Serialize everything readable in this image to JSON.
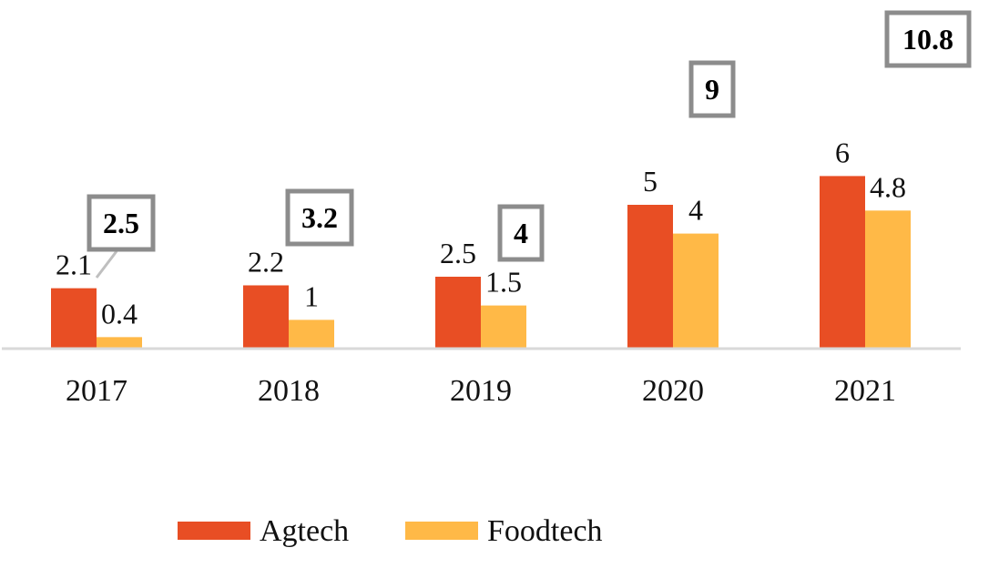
{
  "chart_data": {
    "type": "bar",
    "categories": [
      "2017",
      "2018",
      "2019",
      "2020",
      "2021"
    ],
    "series": [
      {
        "name": "Agtech",
        "values": [
          2.1,
          2.2,
          2.5,
          5,
          6
        ],
        "labels": [
          "2.1",
          "2.2",
          "2.5",
          "5",
          "6"
        ],
        "color": "#e84e24"
      },
      {
        "name": "Foodtech",
        "values": [
          0.4,
          1,
          1.5,
          4,
          4.8
        ],
        "labels": [
          "0.4",
          "1",
          "1.5",
          "4",
          "4.8"
        ],
        "color": "#ffb947"
      }
    ],
    "totals": [
      "2.5",
      "3.2",
      "4",
      "9",
      "10.8"
    ],
    "title": "",
    "xlabel": "",
    "ylabel": "",
    "ylim": [
      0,
      12
    ],
    "grid": false,
    "legend": "bottom-center",
    "axis_color": "#d9d9d9",
    "total_box_color": "#8c8c8c"
  }
}
